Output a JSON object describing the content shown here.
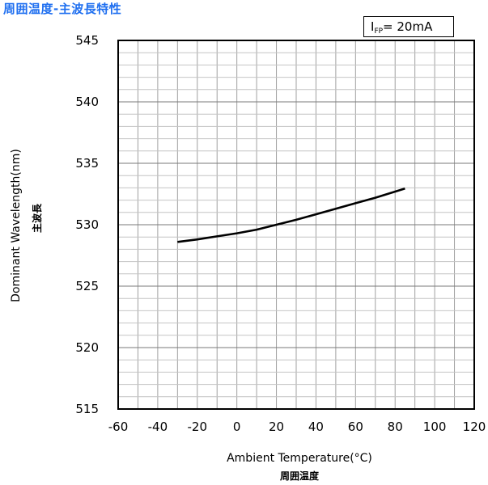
{
  "page_title": "周囲温度-主波長特性",
  "condition": {
    "symbol": "I",
    "subscript": "FP",
    "value": "= 20mA"
  },
  "chart_data": {
    "type": "line",
    "xlabel": "Ambient Temperature(°C)",
    "xlabel_sub": "周囲温度",
    "ylabel": "Dominant Wavelength(nm)",
    "ylabel_sub": "主波長",
    "xlim": [
      -60,
      120
    ],
    "ylim": [
      515,
      545
    ],
    "x_ticks": [
      -60,
      -40,
      -20,
      0,
      20,
      40,
      60,
      80,
      100,
      120
    ],
    "x_tick_labels": [
      "-60",
      "-40",
      "-20",
      "0",
      "20",
      "40",
      "60",
      "80",
      "100",
      "120"
    ],
    "y_ticks": [
      515,
      520,
      525,
      530,
      535,
      540,
      545
    ],
    "y_tick_labels": [
      "515",
      "520",
      "525",
      "530",
      "535",
      "540",
      "545"
    ],
    "grid": true,
    "series": [
      {
        "x": [
          -30,
          -20,
          -10,
          0,
          10,
          20,
          30,
          40,
          50,
          60,
          70,
          85
        ],
        "y": [
          528.6,
          528.8,
          529.05,
          529.3,
          529.6,
          530.0,
          530.4,
          530.85,
          531.3,
          531.75,
          532.2,
          532.95
        ],
        "color": "#000000"
      }
    ]
  }
}
